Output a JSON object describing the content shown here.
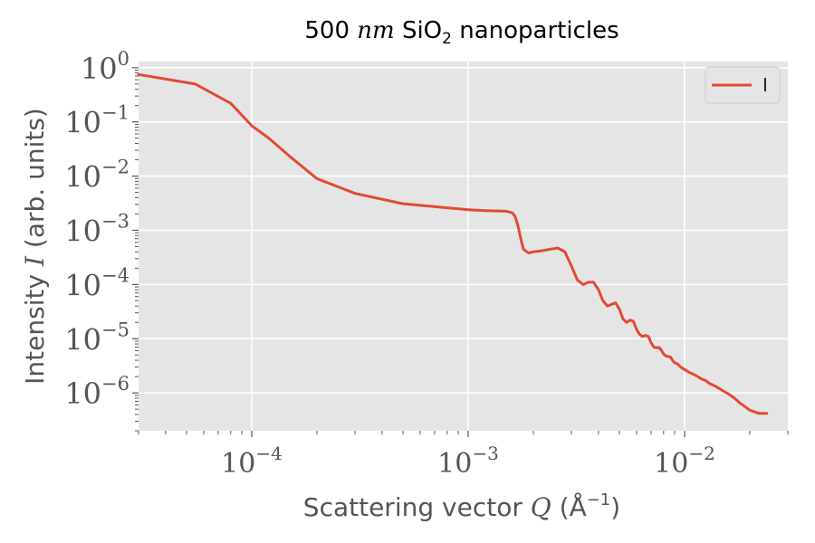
{
  "chart_data": {
    "type": "line",
    "title_parts": {
      "number": "500",
      "unit_italic": "nm",
      "material": "SiO",
      "subscript": "2",
      "rest": "nanoparticles"
    },
    "xlabel_parts": {
      "prefix": "Scattering vector",
      "var": "Q",
      "open": "(",
      "unit": "Å",
      "unit_exp": "−1",
      "close": ")"
    },
    "ylabel_parts": {
      "prefix": "Intensity",
      "var": "I",
      "rest": "(arb. units)"
    },
    "x_scale": "log",
    "y_scale": "log",
    "xlim": [
      3e-05,
      0.03
    ],
    "ylim": [
      2e-07,
      1.3
    ],
    "x_tick_labels": [
      {
        "value": 0.0001,
        "base": "10",
        "exp": "−4"
      },
      {
        "value": 0.001,
        "base": "10",
        "exp": "−3"
      },
      {
        "value": 0.01,
        "base": "10",
        "exp": "−2"
      }
    ],
    "y_tick_labels": [
      {
        "value": 1,
        "base": "10",
        "exp": "0"
      },
      {
        "value": 0.1,
        "base": "10",
        "exp": "−1"
      },
      {
        "value": 0.01,
        "base": "10",
        "exp": "−2"
      },
      {
        "value": 0.001,
        "base": "10",
        "exp": "−3"
      },
      {
        "value": 0.0001,
        "base": "10",
        "exp": "−4"
      },
      {
        "value": 1e-05,
        "base": "10",
        "exp": "−5"
      },
      {
        "value": 1e-06,
        "base": "10",
        "exp": "−6"
      }
    ],
    "grid": true,
    "legend_position": "top-right",
    "series": [
      {
        "name": "I",
        "color": "#e24a33",
        "x": [
          3e-05,
          5.5e-05,
          8e-05,
          0.0001,
          0.00012,
          0.00015,
          0.0002,
          0.0003,
          0.0005,
          0.0008,
          0.001,
          0.0012,
          0.0015,
          0.0016,
          0.00165,
          0.0017,
          0.00175,
          0.0018,
          0.0019,
          0.002,
          0.0022,
          0.0024,
          0.0026,
          0.0028,
          0.003,
          0.0032,
          0.0034,
          0.0036,
          0.0038,
          0.004,
          0.0042,
          0.0044,
          0.0046,
          0.0048,
          0.005,
          0.0052,
          0.0054,
          0.0056,
          0.0058,
          0.006,
          0.0062,
          0.0064,
          0.0066,
          0.0068,
          0.007,
          0.0072,
          0.0074,
          0.0076,
          0.0078,
          0.008,
          0.0082,
          0.0084,
          0.0086,
          0.0088,
          0.009,
          0.0093,
          0.0096,
          0.01,
          0.0105,
          0.011,
          0.0115,
          0.012,
          0.0125,
          0.013,
          0.0135,
          0.014,
          0.0145,
          0.015,
          0.016,
          0.017,
          0.018,
          0.019,
          0.02,
          0.022,
          0.024
        ],
        "y": [
          0.75,
          0.5,
          0.22,
          0.085,
          0.05,
          0.023,
          0.009,
          0.0048,
          0.0031,
          0.0026,
          0.0024,
          0.0023,
          0.00225,
          0.0021,
          0.0018,
          0.0012,
          0.0007,
          0.00045,
          0.00038,
          0.0004,
          0.00042,
          0.00045,
          0.00047,
          0.0004,
          0.00022,
          0.00012,
          0.0001,
          0.00011,
          0.00011,
          8e-05,
          5e-05,
          4e-05,
          4.3e-05,
          4.6e-05,
          3.5e-05,
          2.3e-05,
          2e-05,
          2.2e-05,
          2.1e-05,
          1.5e-05,
          1.2e-05,
          1.1e-05,
          1.15e-05,
          1.1e-05,
          8.5e-06,
          7e-06,
          6.8e-06,
          6.9e-06,
          6.2e-06,
          5.2e-06,
          4.8e-06,
          4.7e-06,
          4.6e-06,
          4e-06,
          3.6e-06,
          3.4e-06,
          3e-06,
          2.7e-06,
          2.4e-06,
          2.2e-06,
          2e-06,
          1.8e-06,
          1.7e-06,
          1.5e-06,
          1.4e-06,
          1.3e-06,
          1.2e-06,
          1.1e-06,
          9.5e-07,
          8e-07,
          6.5e-07,
          5.6e-07,
          4.8e-07,
          4.2e-07,
          4.2e-07
        ]
      }
    ]
  }
}
